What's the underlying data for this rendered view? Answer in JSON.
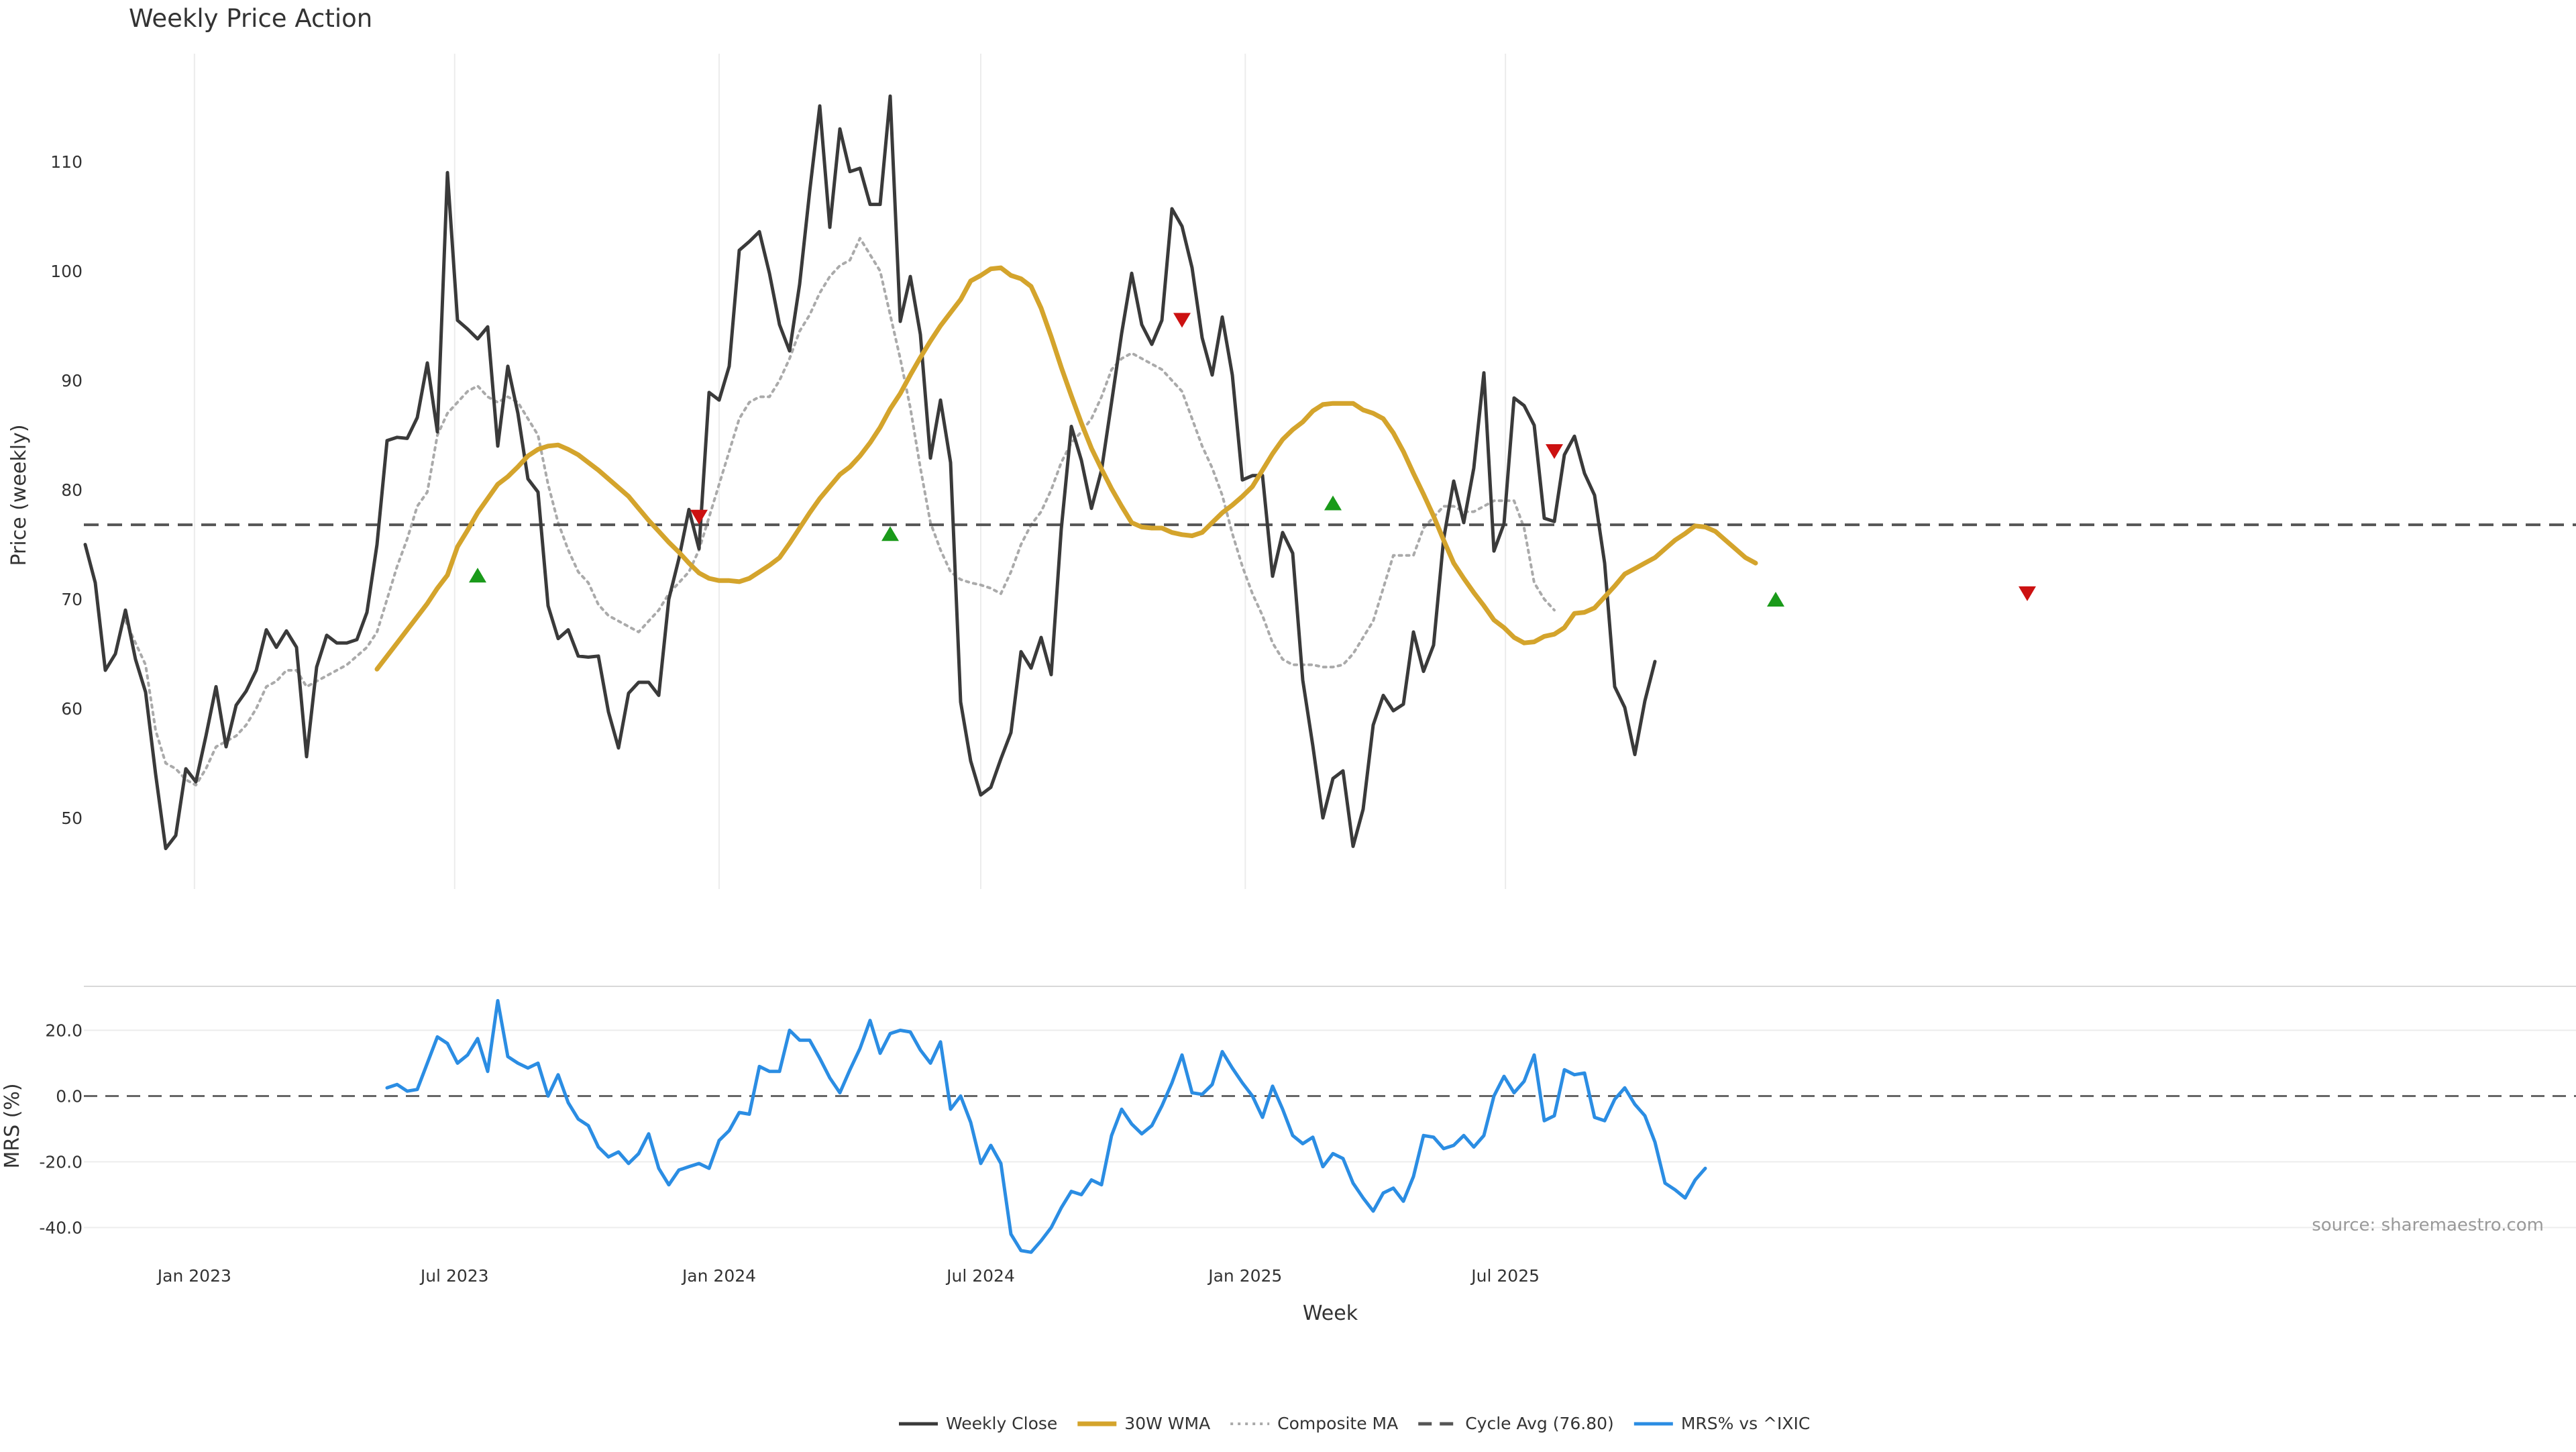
{
  "chart_data": {
    "type": "line",
    "title": "Weekly Price Action",
    "xlabel": "Week",
    "x_ticks": [
      "Jan 2023",
      "Jul 2023",
      "Jan 2024",
      "Jul 2024",
      "Jan 2025",
      "Jul 2025"
    ],
    "x_start": "2022-10-17",
    "price_panel": {
      "ylabel": "Price (weekly)",
      "ylim": [
        42,
        120
      ],
      "yticks": [
        "50",
        "60",
        "70",
        "80",
        "90",
        "100",
        "110"
      ],
      "grid": "vertical",
      "series": [
        {
          "name": "Weekly Close",
          "color": "#3a3a3a",
          "style": "solid",
          "start_index": 0,
          "values": [
            75,
            71.5,
            63.5,
            65,
            69,
            64.5,
            61.5,
            54,
            47.2,
            48.4,
            54.5,
            53.3,
            57.5,
            62,
            56.5,
            60.3,
            61.6,
            63.5,
            67.2,
            65.6,
            67.1,
            65.6,
            55.6,
            63.8,
            66.7,
            66,
            66,
            66.3,
            68.8,
            75,
            84.5,
            84.8,
            84.7,
            86.6,
            91.6,
            85.3,
            109,
            95.5,
            94.7,
            93.8,
            94.9,
            84,
            91.3,
            87,
            81,
            79.8,
            69.4,
            66.4,
            67.2,
            64.8,
            64.7,
            64.8,
            59.7,
            56.4,
            61.4,
            62.4,
            62.4,
            61.2,
            70,
            73.7,
            78.2,
            74.6,
            88.9,
            88.2,
            91.3,
            101.9,
            102.7,
            103.6,
            99.8,
            95.1,
            92.7,
            98.8,
            107.3,
            115.1,
            104,
            113,
            109.1,
            109.4,
            106.1,
            106.1,
            116,
            95.4,
            99.5,
            94.2,
            82.9,
            88.2,
            82.5,
            60.6,
            55.2,
            52.1,
            52.8,
            55.4,
            57.8,
            65.2,
            63.7,
            66.5,
            63.1,
            76.4,
            85.8,
            82.7,
            78.3,
            81.8,
            88,
            94.3,
            99.8,
            95.1,
            93.3,
            95.5,
            105.7,
            104.1,
            100.3,
            93.9,
            90.5,
            95.8,
            90.5,
            80.9,
            81.3,
            81.3,
            72.1,
            76.1,
            74.2,
            62.6,
            56.6,
            50,
            53.6,
            54.3,
            47.4,
            50.8,
            58.5,
            61.2,
            59.8,
            60.4,
            67,
            63.4,
            65.8,
            75.5,
            80.8,
            77,
            82,
            90.7,
            74.4,
            76.9,
            88.4,
            87.7,
            85.9,
            77.4,
            77.1,
            83.2,
            84.9,
            81.5,
            79.5,
            73.3,
            62,
            60.1,
            55.8,
            60.7,
            64.3
          ]
        },
        {
          "name": "30W WMA",
          "color": "#d4a42c",
          "style": "solid",
          "start_index": 29,
          "values": [
            63.6,
            64.8,
            66,
            67.2,
            68.4,
            69.6,
            71,
            72.2,
            74.8,
            76.3,
            77.9,
            79.2,
            80.5,
            81.2,
            82.1,
            83.1,
            83.7,
            84,
            84.1,
            83.7,
            83.2,
            82.5,
            81.8,
            81,
            80.2,
            79.4,
            78.3,
            77.2,
            76.2,
            75.2,
            74.3,
            73.3,
            72.4,
            71.9,
            71.7,
            71.7,
            71.6,
            71.9,
            72.5,
            73.1,
            73.8,
            75.1,
            76.5,
            77.9,
            79.2,
            80.3,
            81.4,
            82.1,
            83.1,
            84.3,
            85.7,
            87.4,
            88.8,
            90.5,
            92.1,
            93.6,
            95,
            96.2,
            97.4,
            99.1,
            99.6,
            100.2,
            100.3,
            99.6,
            99.3,
            98.6,
            96.6,
            94,
            91.2,
            88.6,
            86.1,
            83.8,
            81.9,
            80.1,
            78.5,
            77,
            76.6,
            76.5,
            76.5,
            76.1,
            75.9,
            75.8,
            76.1,
            77,
            77.9,
            78.6,
            79.4,
            80.3,
            81.8,
            83.3,
            84.6,
            85.5,
            86.2,
            87.2,
            87.8,
            87.9,
            87.9,
            87.9,
            87.3,
            87,
            86.5,
            85.2,
            83.5,
            81.5,
            79.6,
            77.6,
            75.4,
            73.3,
            71.9,
            70.6,
            69.4,
            68.1,
            67.4,
            66.5,
            66,
            66.1,
            66.6,
            66.8,
            67.4,
            68.7,
            68.8,
            69.2,
            70.2,
            71.2,
            72.3,
            72.8,
            73.3,
            73.8,
            74.6,
            75.4,
            76,
            76.7,
            76.6,
            76.2,
            75.4,
            74.6,
            73.8,
            73.3
          ]
        },
        {
          "name": "Composite MA",
          "color": "#aaaaaa",
          "style": "dotted",
          "start_index": 4,
          "values": [
            68,
            66,
            64,
            58,
            55,
            54.5,
            53.5,
            53,
            54.5,
            56.5,
            57,
            57.5,
            58.5,
            60,
            62,
            62.5,
            63.5,
            63.5,
            62,
            62.5,
            63,
            63.5,
            64,
            64.8,
            65.6,
            67,
            70,
            73,
            75.5,
            78.5,
            79.8,
            85,
            87,
            88,
            89,
            89.5,
            88.5,
            88,
            88.5,
            88,
            86.5,
            85,
            80.5,
            77,
            74.5,
            72.5,
            71.5,
            69.5,
            68.5,
            68,
            67.5,
            67,
            68,
            69,
            70.5,
            71.5,
            72.5,
            74.5,
            77.5,
            80.5,
            83.5,
            86.5,
            88,
            88.5,
            88.5,
            90,
            92,
            94.5,
            96,
            98,
            99.5,
            100.5,
            101,
            103,
            101.5,
            100,
            96,
            92,
            87.5,
            82,
            77,
            74.5,
            72.5,
            71.8,
            71.5,
            71.3,
            71,
            70.5,
            72.5,
            75,
            76.8,
            78,
            80,
            82.5,
            84.3,
            85.3,
            86.5,
            88.5,
            91,
            92,
            92.5,
            92,
            91.5,
            91,
            90,
            89,
            86.5,
            84,
            82,
            79.5,
            76,
            73,
            70.5,
            68.5,
            66,
            64.5,
            64,
            64,
            64,
            63.8,
            63.8,
            64,
            65,
            66.5,
            68,
            71,
            74,
            74,
            74,
            76.5,
            77.5,
            78.5,
            78.5,
            78,
            78,
            78.5,
            79,
            79,
            79,
            76.5,
            71.5,
            70,
            69
          ]
        },
        {
          "name": "Cycle Avg (76.80)",
          "color": "#555555",
          "style": "dashed",
          "value": 76.8
        }
      ],
      "buy_signals": [
        [
          39,
          72.2
        ],
        [
          80,
          76
        ],
        [
          124,
          78.8
        ],
        [
          168,
          70
        ]
      ],
      "sell_signals": [
        [
          61,
          77.5
        ],
        [
          109,
          95.5
        ],
        [
          146,
          83.5
        ],
        [
          193,
          70.5
        ]
      ]
    },
    "mrs_panel": {
      "ylabel": "MRS (%)",
      "ylim": [
        -48,
        32
      ],
      "yticks": [
        "20.0",
        "0.0",
        "-20.0",
        "-40.0"
      ],
      "zero_line": 0,
      "series": [
        {
          "name": "MRS% vs ^IXIC",
          "color": "#2b8de3",
          "style": "solid",
          "start_index": 30,
          "values": [
            2.5,
            3.5,
            1.5,
            2,
            10,
            18,
            16,
            10,
            12.5,
            17.5,
            7.5,
            29,
            12,
            10,
            8.5,
            10,
            0,
            6.5,
            -2,
            -7,
            -9,
            -15.5,
            -18.5,
            -17,
            -20.5,
            -17.5,
            -11.5,
            -22,
            -27,
            -22.5,
            -21.5,
            -20.5,
            -22,
            -13.5,
            -10.5,
            -5,
            -5.5,
            9,
            7.5,
            7.5,
            20,
            17,
            17,
            11.5,
            5.5,
            1,
            8,
            14.5,
            23,
            13,
            19,
            20,
            19.5,
            14,
            10,
            16.5,
            -4,
            0,
            -8,
            -20.5,
            -15,
            -20.5,
            -42,
            -47,
            -47.5,
            -44,
            -40,
            -34,
            -29,
            -30,
            -25.5,
            -27,
            -12,
            -4,
            -8.5,
            -11.5,
            -9,
            -3,
            4,
            12.5,
            1,
            0.5,
            3.5,
            13.5,
            8.5,
            4,
            0,
            -6.5,
            3,
            -4,
            -12,
            -14.5,
            -12.5,
            -21.5,
            -17.5,
            -19,
            -26.5,
            -31,
            -35,
            -29.5,
            -28,
            -32,
            -24.5,
            -12,
            -12.5,
            -16,
            -15,
            -12,
            -15.5,
            -12,
            0,
            6,
            1,
            4.5,
            12.5,
            -7.5,
            -6,
            8,
            6.5,
            7,
            -6.5,
            -7.5,
            -1,
            2.5,
            -2.5,
            -6,
            -14,
            -26.5,
            -28.5,
            -31,
            -25.5,
            -22
          ]
        }
      ]
    },
    "legend": {
      "position": "bottom-center",
      "entries": [
        "Weekly Close",
        "30W WMA",
        "Composite MA",
        "Cycle Avg (76.80)",
        "MRS% vs ^IXIC"
      ]
    },
    "source": "source: sharemaestro.com"
  }
}
